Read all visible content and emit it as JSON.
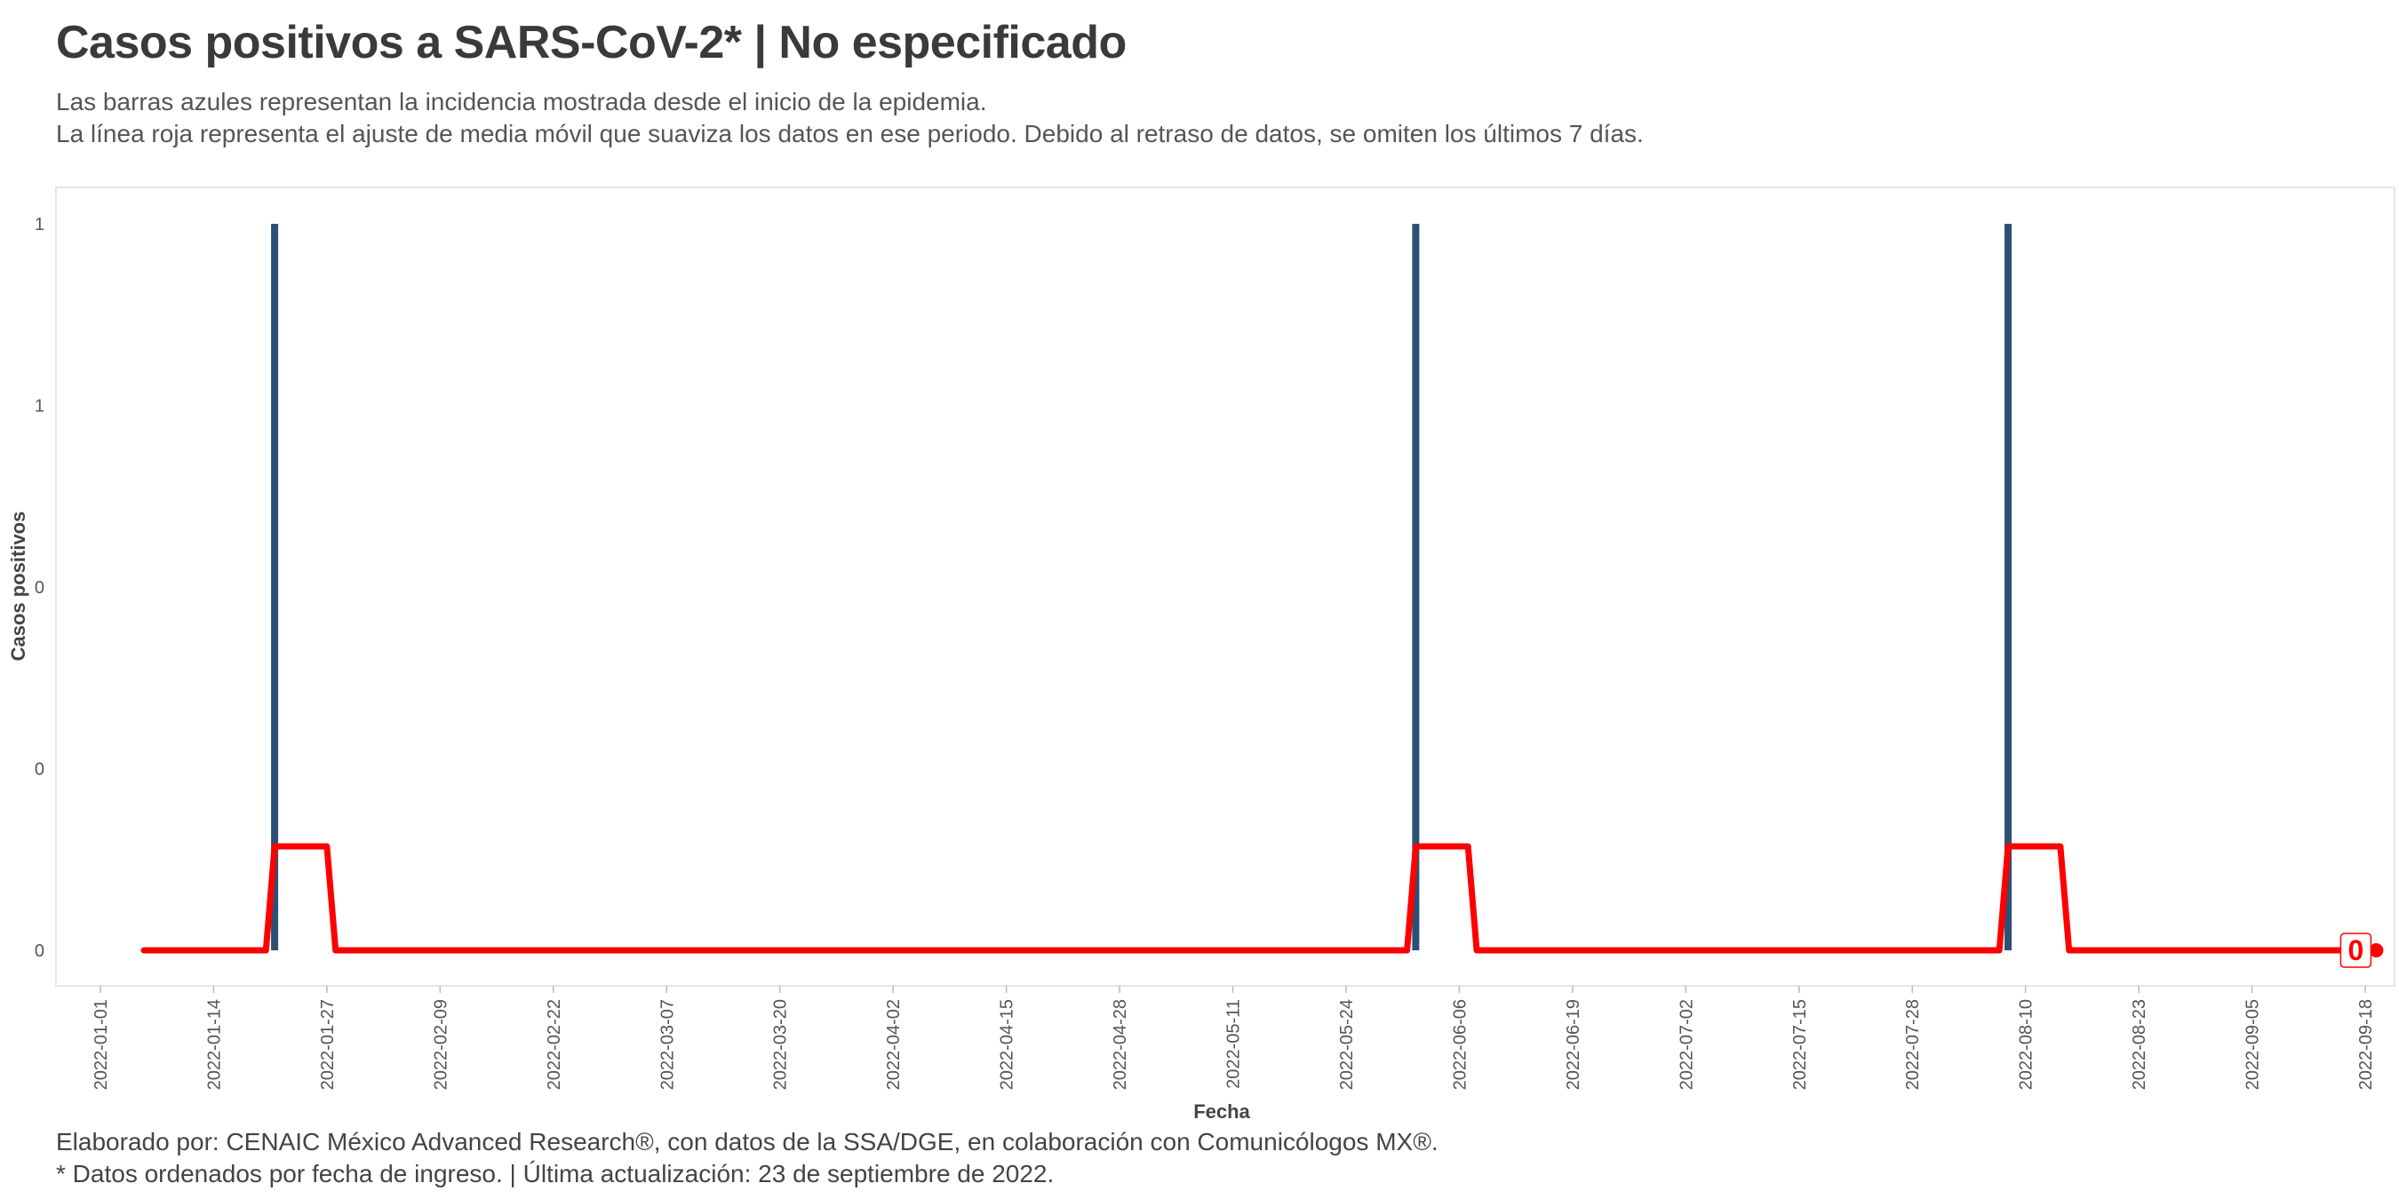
{
  "header": {
    "title": "Casos positivos a SARS-CoV-2* | No especificado",
    "subtitle_line1": "Las barras azules representan la incidencia mostrada desde el inicio de la epidemia.",
    "subtitle_line2": "La línea roja representa el ajuste de media móvil que suaviza los datos en ese periodo. Debido al retraso de datos, se omiten los últimos 7 días."
  },
  "footer": {
    "caption_line1": "Elaborado por: CENAIC México Advanced Research®, con datos de la SSA/DGE, en colaboración con Comunicólogos MX®.",
    "caption_line2": "* Datos ordenados por fecha de ingreso. | Última actualización: 23 de septiembre de 2022."
  },
  "colors": {
    "bars": "#2b5175",
    "line": "#ff0000",
    "panel_border": "#e6e6e6"
  },
  "chart_data": {
    "type": "bar",
    "title": "Casos positivos a SARS-CoV-2* | No especificado",
    "xlabel": "Fecha",
    "ylabel": "Casos positivos",
    "x_start": "2022-01-01",
    "x_end": "2022-09-18",
    "ylim": [
      0,
      1
    ],
    "y_tick_values": [
      0,
      0.25,
      0.5,
      0.75,
      1
    ],
    "y_tick_labels": [
      "0",
      "0",
      "0",
      "1",
      "1"
    ],
    "x_tick_labels": [
      "2022-01-01",
      "2022-01-14",
      "2022-01-27",
      "2022-02-09",
      "2022-02-22",
      "2022-03-07",
      "2022-03-20",
      "2022-04-02",
      "2022-04-15",
      "2022-04-28",
      "2022-05-11",
      "2022-05-24",
      "2022-06-06",
      "2022-06-19",
      "2022-07-02",
      "2022-07-15",
      "2022-07-28",
      "2022-08-10",
      "2022-08-23",
      "2022-09-05",
      "2022-09-18"
    ],
    "bars": [
      {
        "date": "2022-01-21",
        "value": 1
      },
      {
        "date": "2022-06-01",
        "value": 1
      },
      {
        "date": "2022-08-08",
        "value": 1
      }
    ],
    "moving_average": {
      "name": "media móvil",
      "points": [
        {
          "date": "2022-01-06",
          "value": 0
        },
        {
          "date": "2022-01-20",
          "value": 0
        },
        {
          "date": "2022-01-21",
          "value": 0.143
        },
        {
          "date": "2022-01-27",
          "value": 0.143
        },
        {
          "date": "2022-01-28",
          "value": 0
        },
        {
          "date": "2022-05-31",
          "value": 0
        },
        {
          "date": "2022-06-01",
          "value": 0.143
        },
        {
          "date": "2022-06-07",
          "value": 0.143
        },
        {
          "date": "2022-06-08",
          "value": 0
        },
        {
          "date": "2022-08-07",
          "value": 0
        },
        {
          "date": "2022-08-08",
          "value": 0.143
        },
        {
          "date": "2022-08-14",
          "value": 0.143
        },
        {
          "date": "2022-08-15",
          "value": 0
        },
        {
          "date": "2022-09-16",
          "value": 0
        }
      ],
      "end_label": "0"
    }
  }
}
